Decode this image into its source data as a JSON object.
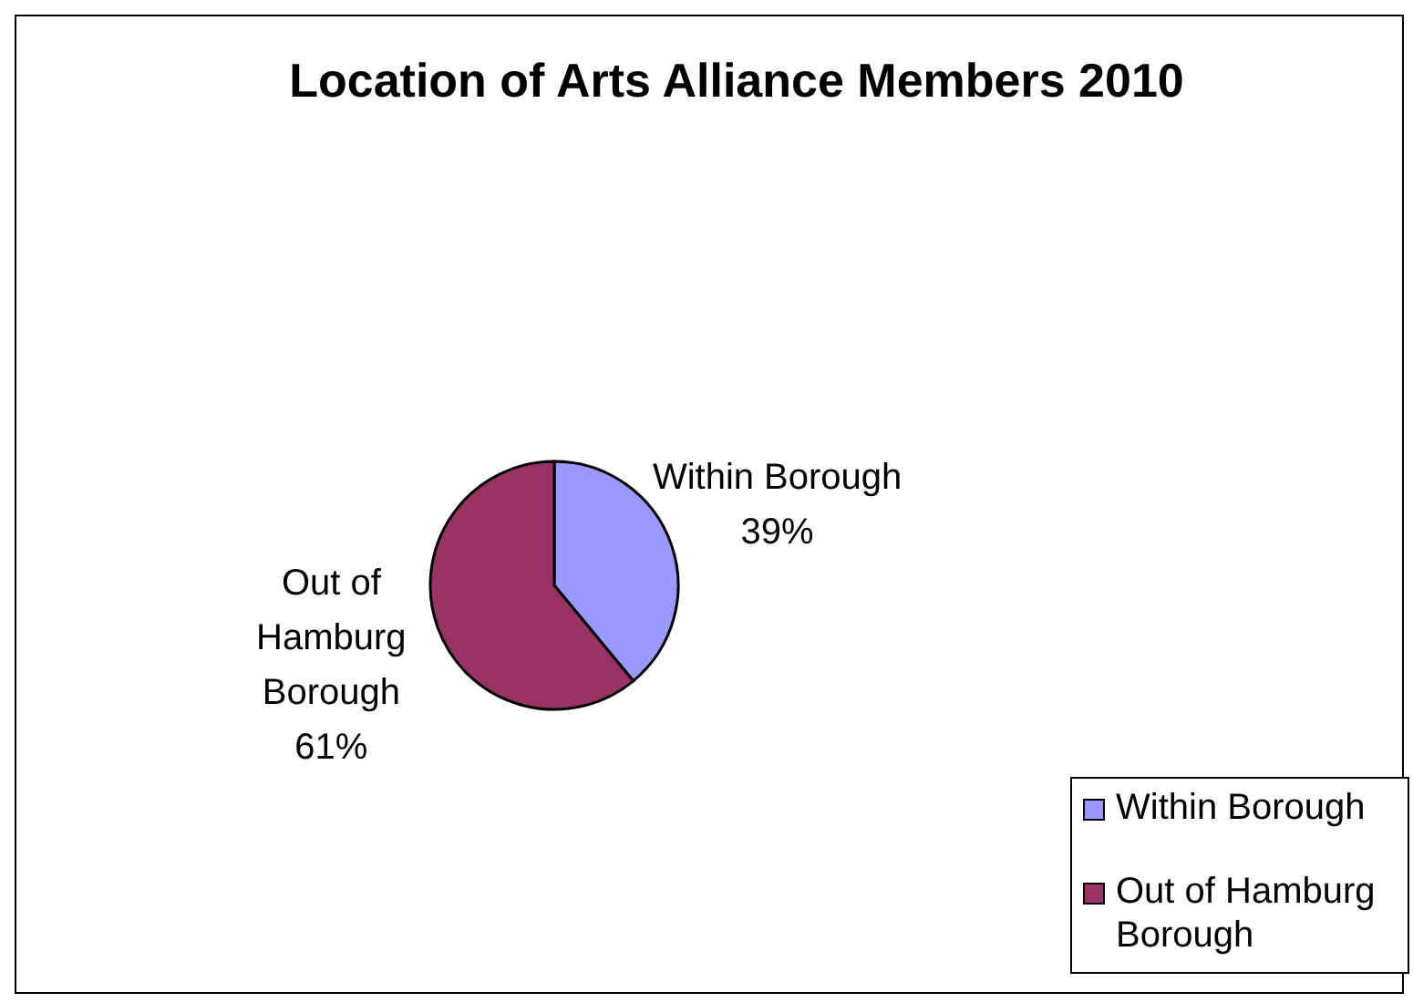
{
  "chart_data": {
    "type": "pie",
    "title": "Location of Arts Alliance Members 2010",
    "categories": [
      "Within Borough",
      "Out of Hamburg Borough"
    ],
    "values": [
      39,
      61
    ],
    "colors": [
      "#9999ff",
      "#993366"
    ],
    "value_labels": [
      "39%",
      "61%"
    ],
    "legend": "bottom right"
  }
}
